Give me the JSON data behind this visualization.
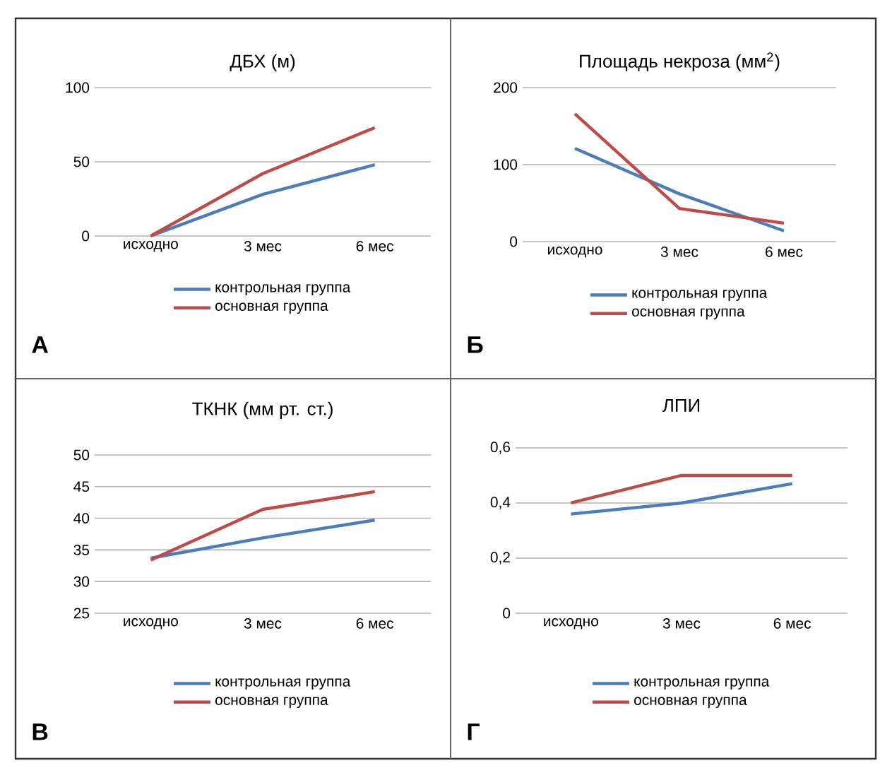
{
  "chart_data": [
    {
      "type": "line",
      "title": "ДБХ (м)",
      "categories": [
        "исходно",
        "3 мес",
        "6 мес"
      ],
      "ylim": [
        0,
        100
      ],
      "yticks": [
        0,
        50,
        100
      ],
      "grid": "y",
      "legend": "bottom",
      "annotations": [
        "А"
      ],
      "series": [
        {
          "name": "контрольная группа",
          "color": "#4a7ebb",
          "values": [
            0,
            28,
            48
          ]
        },
        {
          "name": "основная группа",
          "color": "#be4b48",
          "values": [
            0,
            42,
            73
          ]
        }
      ]
    },
    {
      "type": "line",
      "title": "Площадь некроза (мм$^{2}$)",
      "categories": [
        "исходно",
        "3 мес",
        "6 мес"
      ],
      "ylim": [
        0,
        200
      ],
      "yticks": [
        0,
        100,
        200
      ],
      "grid": "y",
      "legend": "bottom",
      "annotations": [
        "Б"
      ],
      "series": [
        {
          "name": "контрольная группа",
          "color": "#4a7ebb",
          "values": [
            121,
            62,
            14
          ]
        },
        {
          "name": "основная группа",
          "color": "#be4b48",
          "values": [
            166,
            43,
            24
          ]
        }
      ]
    },
    {
      "type": "line",
      "title": "ТКНК (мм рт. ст.)",
      "categories": [
        "исходно",
        "3 мес",
        "6 мес"
      ],
      "ylim": [
        25,
        50
      ],
      "yticks": [
        25,
        30,
        35,
        40,
        45,
        50
      ],
      "grid": "y",
      "legend": "bottom",
      "annotations": [
        "В"
      ],
      "series": [
        {
          "name": "контрольная группа",
          "color": "#4a7ebb",
          "values": [
            33.7,
            36.9,
            39.7
          ]
        },
        {
          "name": "основная группа",
          "color": "#be4b48",
          "values": [
            33.4,
            41.4,
            44.2
          ]
        }
      ]
    },
    {
      "type": "line",
      "title": "ЛПИ",
      "categories": [
        "исходно",
        "3 мес",
        "6 мес"
      ],
      "ylim": [
        0,
        0.6
      ],
      "yticks": [
        0,
        {
          "value": 0.2,
          "label": "0,2"
        },
        {
          "value": 0.4,
          "label": "0,4"
        },
        {
          "value": 0.6,
          "label": "0,6"
        }
      ],
      "grid": "y",
      "legend": "bottom",
      "annotations": [
        "Г"
      ],
      "series": [
        {
          "name": "контрольная группа",
          "color": "#4a7ebb",
          "values": [
            0.36,
            0.4,
            0.47
          ]
        },
        {
          "name": "основная группа",
          "color": "#be4b48",
          "values": [
            0.4,
            0.5,
            0.5
          ]
        }
      ]
    }
  ]
}
